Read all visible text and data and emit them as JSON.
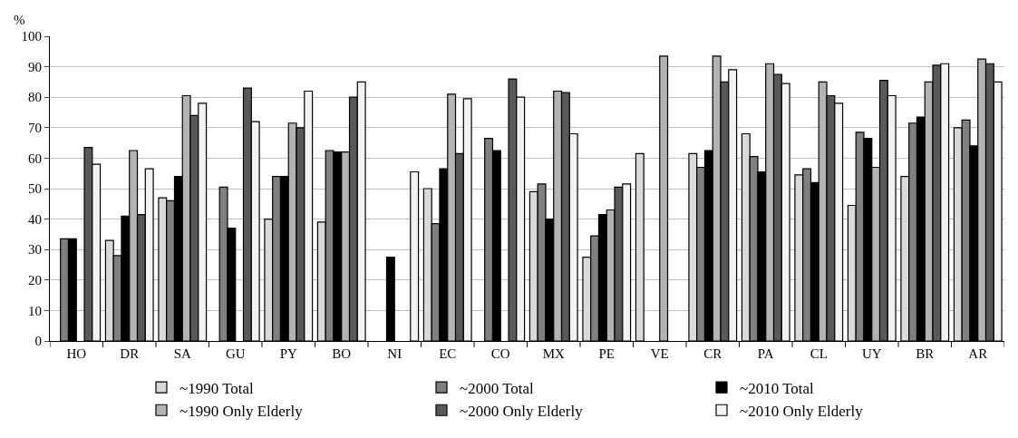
{
  "chart_data": {
    "type": "bar",
    "ylabel": "%",
    "categories": [
      "HO",
      "DR",
      "SA",
      "GU",
      "PY",
      "BO",
      "NI",
      "EC",
      "CO",
      "MX",
      "PE",
      "VE",
      "CR",
      "PA",
      "CL",
      "UY",
      "BR",
      "AR"
    ],
    "series": [
      {
        "name": "~1990 Total",
        "color": "#d9d9d9",
        "values": [
          null,
          33,
          47,
          null,
          40,
          39,
          null,
          50,
          null,
          49,
          27.5,
          61.5,
          61.5,
          68,
          54.5,
          44.5,
          54,
          70
        ]
      },
      {
        "name": "~2000 Total",
        "color": "#808080",
        "values": [
          33.5,
          28,
          46,
          50.5,
          54,
          62.5,
          null,
          38.5,
          66.5,
          51.5,
          34.5,
          null,
          57,
          60.5,
          56.5,
          68.5,
          71.5,
          72.5
        ]
      },
      {
        "name": "~2010 Total",
        "color": "#000000",
        "values": [
          33.5,
          41,
          54,
          37,
          54,
          62,
          27.5,
          56.5,
          62.5,
          40,
          41.5,
          null,
          62.5,
          55.5,
          52,
          66.5,
          73.5,
          64
        ]
      },
      {
        "name": "~1990 Only Elderly",
        "color": "#b3b3b3",
        "values": [
          null,
          62.5,
          80.5,
          null,
          71.5,
          62,
          null,
          81,
          null,
          82,
          43,
          93.5,
          93.5,
          91,
          85,
          57,
          85,
          92.5
        ]
      },
      {
        "name": "~2000 Only Elderly",
        "color": "#595959",
        "values": [
          63.5,
          41.5,
          74,
          83,
          70,
          80,
          null,
          61.5,
          86,
          81.5,
          50.5,
          null,
          85,
          87.5,
          80.5,
          85.5,
          90.5,
          91
        ]
      },
      {
        "name": "~2010 Only Elderly",
        "color": "#f2f2f2",
        "values": [
          58,
          56.5,
          78,
          72,
          82,
          85,
          55.5,
          79.5,
          80,
          68,
          51.5,
          null,
          89,
          84.5,
          78,
          80.5,
          91,
          85
        ]
      }
    ],
    "ylim": [
      0,
      100
    ],
    "yticks": [
      0,
      10,
      20,
      30,
      40,
      50,
      60,
      70,
      80,
      90,
      100
    ],
    "grid": "y",
    "legend": "bottom"
  }
}
